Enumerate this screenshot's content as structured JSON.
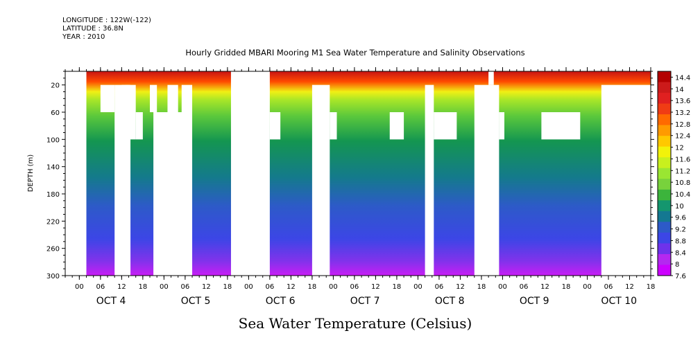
{
  "header": {
    "longitude": "LONGITUDE : 122W(-122)",
    "latitude": "LATITUDE : 36.8N",
    "year": "YEAR : 2010"
  },
  "chart_data": {
    "type": "heatmap",
    "title": "Hourly Gridded MBARI Mooring M1 Sea Water Temperature and Salinity Observations",
    "xlabel": "Sea Water Temperature (Celsius)",
    "ylabel": "DEPTH (m)",
    "y_ticks": [
      "20",
      "60",
      "100",
      "140",
      "180",
      "220",
      "260",
      "300"
    ],
    "y_tick_values": [
      20,
      60,
      100,
      140,
      180,
      220,
      260,
      300
    ],
    "ylim": [
      300,
      0
    ],
    "x_hour_labels": [
      "00",
      "06",
      "12",
      "18",
      "00",
      "06",
      "12",
      "18",
      "00",
      "06",
      "12",
      "18",
      "00",
      "06",
      "12",
      "18",
      "00",
      "06",
      "12",
      "18",
      "00",
      "06",
      "12",
      "18",
      "00",
      "06",
      "12",
      "18"
    ],
    "x_day_labels": [
      "OCT  4",
      "OCT  5",
      "OCT  6",
      "OCT  7",
      "OCT  8",
      "OCT  9",
      "OCT 10"
    ],
    "xlim_hours": [
      -4,
      162
    ],
    "colorbar_labels": [
      "14.4",
      "14",
      "13.6",
      "13.2",
      "12.8",
      "12.4",
      "12",
      "11.6",
      "11.2",
      "10.8",
      "10.4",
      "10",
      "9.6",
      "9.2",
      "8.8",
      "8.4",
      "8",
      "7.6"
    ],
    "colorbar_range": [
      7.6,
      14.6
    ],
    "colorbar_colors": [
      "#b30000",
      "#cc1a1a",
      "#e02020",
      "#f03c14",
      "#ff6a00",
      "#ff9a00",
      "#ffc800",
      "#f2f20a",
      "#c8f01e",
      "#9ae632",
      "#78d23c",
      "#3cb43c",
      "#14966e",
      "#147891",
      "#2d5ac8",
      "#3c46e6",
      "#6e32eb",
      "#b428f0",
      "#cc00ff"
    ],
    "summary": "Warm surface layer (about 12-14.5 C) in the top 20 m, cooling to about 10 C by 100 m and to about 7.6-8 C near 300 m."
  }
}
